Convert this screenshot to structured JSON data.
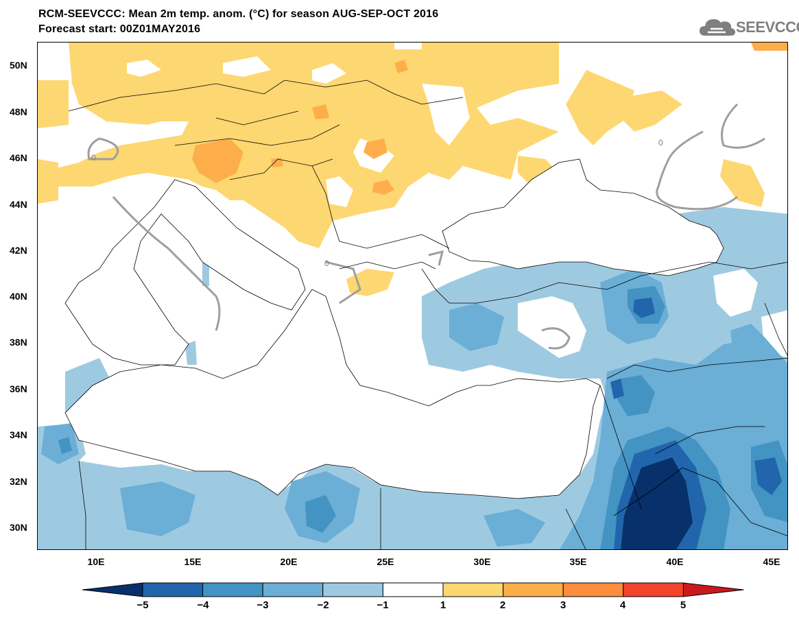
{
  "header": {
    "title_line1": "RCM-SEEVCCC: Mean 2m temp. anom. (°C) for season AUG-SEP-OCT 2016",
    "title_line2": "Forecast start: 00Z01MAY2016",
    "logo_text": "SEEVCCC"
  },
  "map": {
    "lat_labels": [
      "50N",
      "48N",
      "46N",
      "44N",
      "42N",
      "40N",
      "38N",
      "36N",
      "34N",
      "32N",
      "30N"
    ],
    "lon_labels": [
      "10E",
      "15E",
      "20E",
      "25E",
      "30E",
      "35E",
      "40E",
      "45E"
    ],
    "contour_label": "0"
  },
  "colorbar": {
    "labels": [
      "−5",
      "−4",
      "−3",
      "−2",
      "−1",
      "1",
      "2",
      "3",
      "4",
      "5"
    ],
    "colors": [
      "#08306b",
      "#2166ac",
      "#4393c3",
      "#6baed6",
      "#9ecae1",
      "#ffffff",
      "#fdd771",
      "#fdae4b",
      "#fc8d3c",
      "#f3432b",
      "#cb181d"
    ]
  }
}
